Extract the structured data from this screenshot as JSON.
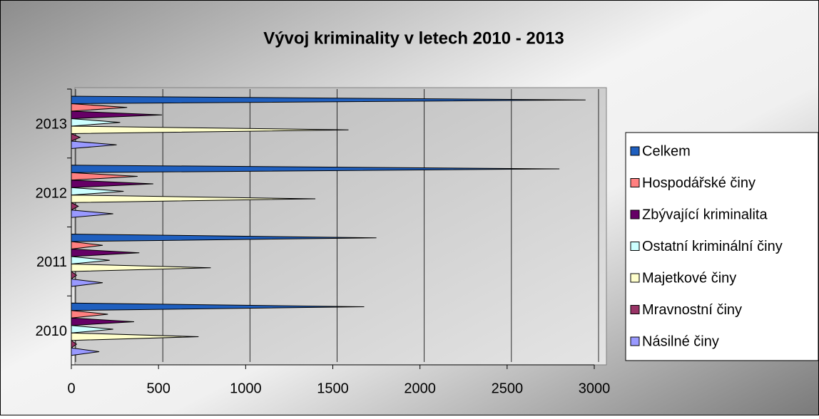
{
  "chart_data": {
    "type": "bar",
    "orientation": "horizontal",
    "title": "Vývoj kriminality v letech 2010 - 2013",
    "categories": [
      "2010",
      "2011",
      "2012",
      "2013"
    ],
    "series": [
      {
        "name": "Celkem",
        "color": "#1f5fbf",
        "values": [
          1680,
          1750,
          2800,
          2950
        ]
      },
      {
        "name": "Hospodářské činy",
        "color": "#ff8080",
        "values": [
          210,
          180,
          380,
          320
        ]
      },
      {
        "name": "Zbývající kriminalita",
        "color": "#660066",
        "values": [
          360,
          390,
          470,
          520
        ]
      },
      {
        "name": "Ostatní kriminální činy",
        "color": "#ccffff",
        "values": [
          240,
          220,
          300,
          280
        ]
      },
      {
        "name": "Majetkové činy",
        "color": "#ffffcc",
        "values": [
          730,
          800,
          1400,
          1590
        ]
      },
      {
        "name": "Mravnostní činy",
        "color": "#993366",
        "values": [
          30,
          30,
          40,
          50
        ]
      },
      {
        "name": "Násilné činy",
        "color": "#9999ff",
        "values": [
          160,
          180,
          240,
          260
        ]
      }
    ],
    "xlim": [
      0,
      3000
    ],
    "xticks": [
      0,
      500,
      1000,
      1500,
      2000,
      2500,
      3000
    ],
    "grid": true,
    "legend": "right"
  }
}
